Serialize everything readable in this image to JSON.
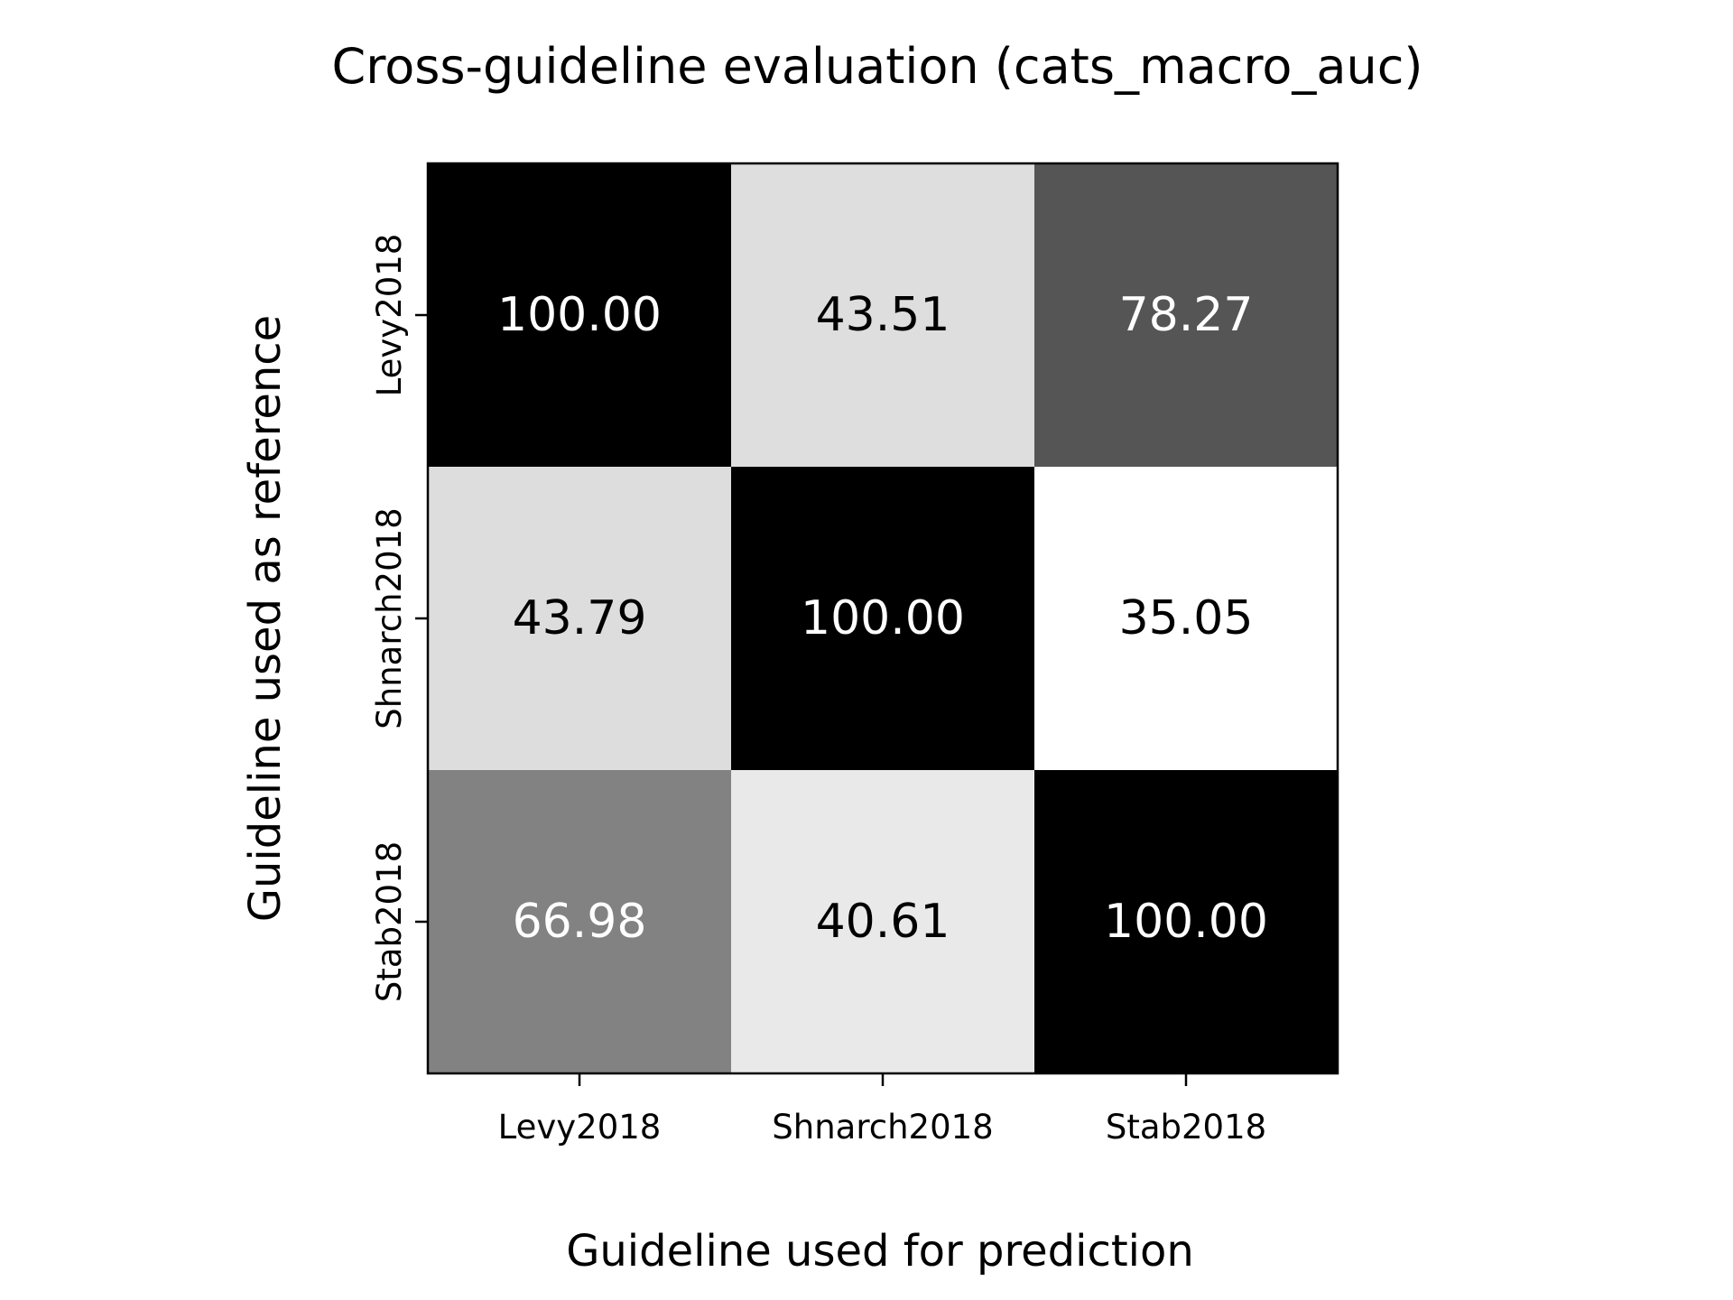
{
  "chart_data": {
    "type": "heatmap",
    "title": "Cross-guideline evaluation (cats_macro_auc)",
    "xlabel": "Guideline used for prediction",
    "ylabel": "Guideline used as reference",
    "x_categories": [
      "Levy2018",
      "Shnarch2018",
      "Stab2018"
    ],
    "y_categories": [
      "Levy2018",
      "Shnarch2018",
      "Stab2018"
    ],
    "values": [
      [
        100.0,
        43.51,
        78.27
      ],
      [
        43.79,
        100.0,
        35.05
      ],
      [
        66.98,
        40.61,
        100.0
      ]
    ],
    "value_labels": [
      [
        "100.00",
        "43.51",
        "78.27"
      ],
      [
        "43.79",
        "100.00",
        "35.05"
      ],
      [
        "66.98",
        "40.61",
        "100.00"
      ]
    ],
    "colormap": "greys",
    "color_min": "#ffffff",
    "color_max": "#000000",
    "grid": false,
    "legend": "none"
  }
}
